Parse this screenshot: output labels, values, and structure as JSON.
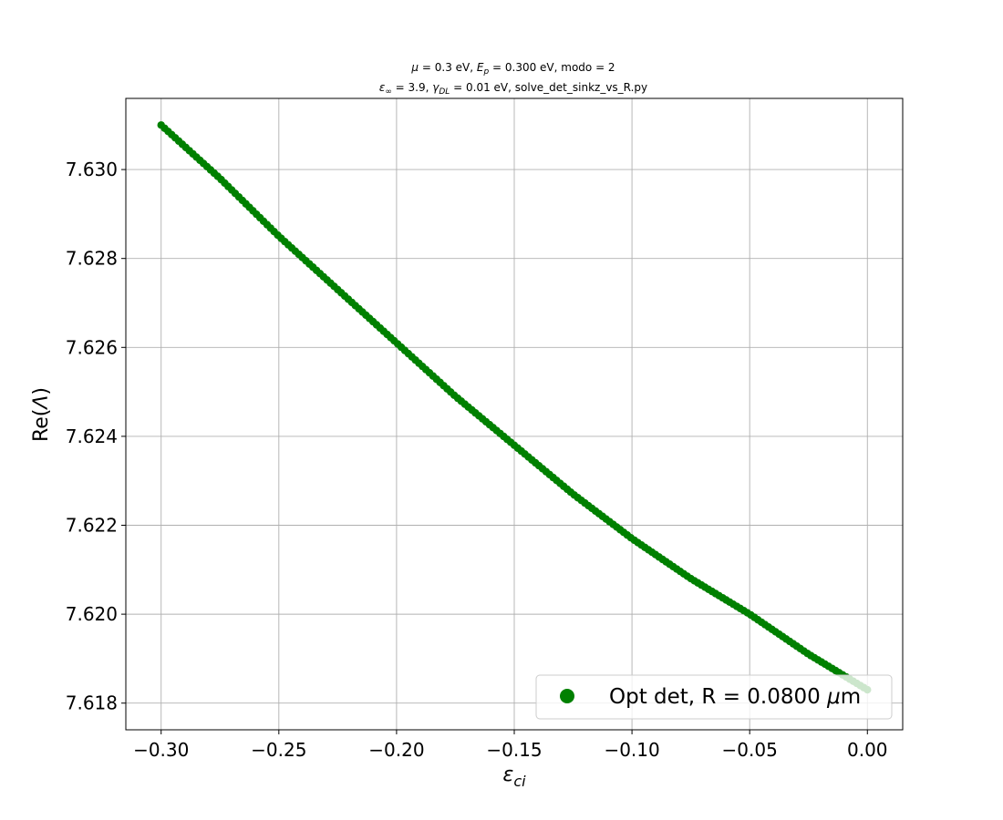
{
  "chart_data": {
    "type": "scatter",
    "title_line1": "μ = 0.3 eV, E_p = 0.300 eV, modo = 2",
    "title_line2": "ε∞ = 3.9, γ_DL = 0.01 eV, solve_det_sinkz_vs_R.py",
    "xlabel": "ε_ci",
    "ylabel": "Re(Λ)",
    "xlim": [
      -0.315,
      0.015
    ],
    "ylim": [
      7.6174,
      7.6316
    ],
    "xticks": [
      -0.3,
      -0.25,
      -0.2,
      -0.15,
      -0.1,
      -0.05,
      0.0
    ],
    "xtick_labels": [
      "−0.30",
      "−0.25",
      "−0.20",
      "−0.15",
      "−0.10",
      "−0.05",
      "0.00"
    ],
    "yticks": [
      7.618,
      7.62,
      7.622,
      7.624,
      7.626,
      7.628,
      7.63
    ],
    "ytick_labels": [
      "7.618",
      "7.620",
      "7.622",
      "7.624",
      "7.626",
      "7.628",
      "7.630"
    ],
    "grid": true,
    "legend_position": "lower-right",
    "series": [
      {
        "name": "Opt det, R = 0.0800 μm",
        "color": "#008000",
        "marker": "circle",
        "x_range": [
          -0.3,
          0.0
        ],
        "x": [
          -0.3,
          -0.275,
          -0.25,
          -0.225,
          -0.2,
          -0.175,
          -0.15,
          -0.125,
          -0.1,
          -0.075,
          -0.05,
          -0.025,
          0.0
        ],
        "y": [
          7.631,
          7.6298,
          7.6285,
          7.6273,
          7.6261,
          7.6249,
          7.6238,
          7.6227,
          7.6217,
          7.6208,
          7.62,
          7.6191,
          7.6183
        ]
      }
    ]
  }
}
